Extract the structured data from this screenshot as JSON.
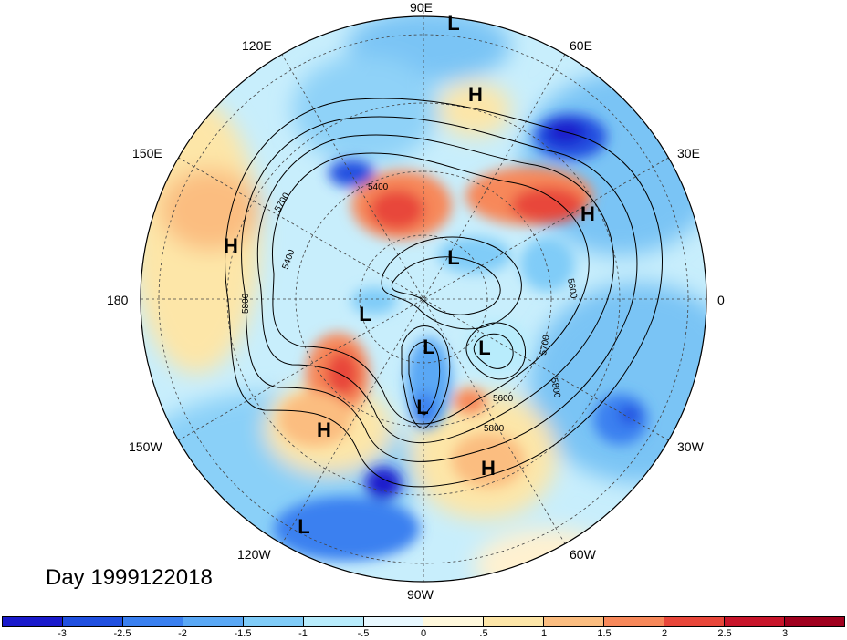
{
  "title": "Day 1999122018",
  "longitude_labels": {
    "lon_90e": "90E",
    "lon_60e": "60E",
    "lon_30e": "30E",
    "lon_0": "0",
    "lon_30w": "30W",
    "lon_60w": "60W",
    "lon_90w": "90W",
    "lon_120w": "120W",
    "lon_150w": "150W",
    "lon_180": "180",
    "lon_150e": "150E",
    "lon_120e": "120E"
  },
  "pressure_centers": [
    {
      "label": "L"
    },
    {
      "label": "H"
    },
    {
      "label": "H"
    },
    {
      "label": "H"
    },
    {
      "label": "L"
    },
    {
      "label": "L"
    },
    {
      "label": "L"
    },
    {
      "label": "L"
    },
    {
      "label": "L"
    },
    {
      "label": "H"
    },
    {
      "label": "H"
    },
    {
      "label": "L"
    }
  ],
  "contour_labels": [
    "5400",
    "5700",
    "5400",
    "5800",
    "5600",
    "5700",
    "5800",
    "5600",
    "5800"
  ],
  "colorbar": {
    "ticks": [
      "-3",
      "-2.5",
      "-2",
      "-1.5",
      "-1",
      "-.5",
      "0",
      ".5",
      "1",
      "1.5",
      "2",
      "2.5",
      "3"
    ],
    "colors": [
      "#1a1acc",
      "#2050e0",
      "#3a80f0",
      "#5aa8f5",
      "#80ccf8",
      "#b8ecfc",
      "#e8f8ff",
      "#fff8dc",
      "#fde6a8",
      "#fbbd80",
      "#f7885a",
      "#e8463a",
      "#c8142a",
      "#a0001e"
    ]
  }
}
